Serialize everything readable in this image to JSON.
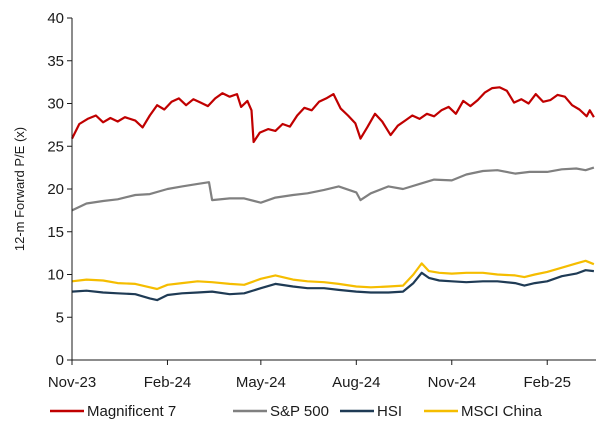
{
  "chart_data": {
    "type": "line",
    "title": "",
    "xlabel": "",
    "ylabel": "12-m Forward P/E (x)",
    "ylim": [
      0,
      40
    ],
    "yticks": [
      0,
      5,
      10,
      15,
      20,
      25,
      30,
      35,
      40
    ],
    "xlim": [
      "2023-11-01",
      "2025-03-20"
    ],
    "xticks": [
      {
        "date": "2023-11-01",
        "label": "Nov-23"
      },
      {
        "date": "2024-02-01",
        "label": "Feb-24"
      },
      {
        "date": "2024-05-01",
        "label": "May-24"
      },
      {
        "date": "2024-08-01",
        "label": "Aug-24"
      },
      {
        "date": "2024-11-01",
        "label": "Nov-24"
      },
      {
        "date": "2025-02-01",
        "label": "Feb-25"
      }
    ],
    "grid": false,
    "legend_position": "bottom",
    "series": [
      {
        "name": "Magnificent 7",
        "color": "#c00000",
        "points": [
          [
            "2023-11-01",
            25.9
          ],
          [
            "2023-11-08",
            27.6
          ],
          [
            "2023-11-16",
            28.2
          ],
          [
            "2023-11-24",
            28.6
          ],
          [
            "2023-12-01",
            27.8
          ],
          [
            "2023-12-08",
            28.3
          ],
          [
            "2023-12-15",
            27.9
          ],
          [
            "2023-12-22",
            28.4
          ],
          [
            "2024-01-01",
            28.0
          ],
          [
            "2024-01-08",
            27.2
          ],
          [
            "2024-01-15",
            28.6
          ],
          [
            "2024-01-22",
            29.8
          ],
          [
            "2024-01-29",
            29.3
          ],
          [
            "2024-02-05",
            30.2
          ],
          [
            "2024-02-12",
            30.6
          ],
          [
            "2024-02-19",
            29.8
          ],
          [
            "2024-02-26",
            30.5
          ],
          [
            "2024-03-04",
            30.1
          ],
          [
            "2024-03-11",
            29.7
          ],
          [
            "2024-03-18",
            30.6
          ],
          [
            "2024-03-25",
            31.2
          ],
          [
            "2024-04-01",
            30.8
          ],
          [
            "2024-04-08",
            31.1
          ],
          [
            "2024-04-12",
            29.6
          ],
          [
            "2024-04-18",
            30.3
          ],
          [
            "2024-04-22",
            29.2
          ],
          [
            "2024-04-24",
            25.5
          ],
          [
            "2024-04-30",
            26.6
          ],
          [
            "2024-05-08",
            27.0
          ],
          [
            "2024-05-15",
            26.8
          ],
          [
            "2024-05-22",
            27.6
          ],
          [
            "2024-05-29",
            27.3
          ],
          [
            "2024-06-05",
            28.6
          ],
          [
            "2024-06-12",
            29.5
          ],
          [
            "2024-06-19",
            29.2
          ],
          [
            "2024-06-26",
            30.2
          ],
          [
            "2024-07-03",
            30.6
          ],
          [
            "2024-07-10",
            31.1
          ],
          [
            "2024-07-17",
            29.4
          ],
          [
            "2024-07-24",
            28.6
          ],
          [
            "2024-07-31",
            27.7
          ],
          [
            "2024-08-05",
            25.9
          ],
          [
            "2024-08-12",
            27.3
          ],
          [
            "2024-08-19",
            28.8
          ],
          [
            "2024-08-26",
            27.9
          ],
          [
            "2024-09-03",
            26.3
          ],
          [
            "2024-09-10",
            27.4
          ],
          [
            "2024-09-17",
            28.0
          ],
          [
            "2024-09-24",
            28.6
          ],
          [
            "2024-10-01",
            28.2
          ],
          [
            "2024-10-08",
            28.8
          ],
          [
            "2024-10-15",
            28.5
          ],
          [
            "2024-10-22",
            29.2
          ],
          [
            "2024-10-29",
            29.6
          ],
          [
            "2024-11-05",
            28.8
          ],
          [
            "2024-11-12",
            30.3
          ],
          [
            "2024-11-19",
            29.7
          ],
          [
            "2024-11-26",
            30.4
          ],
          [
            "2024-12-03",
            31.3
          ],
          [
            "2024-12-10",
            31.8
          ],
          [
            "2024-12-17",
            31.9
          ],
          [
            "2024-12-24",
            31.5
          ],
          [
            "2024-12-31",
            30.1
          ],
          [
            "2025-01-07",
            30.5
          ],
          [
            "2025-01-14",
            30.0
          ],
          [
            "2025-01-21",
            31.1
          ],
          [
            "2025-01-28",
            30.2
          ],
          [
            "2025-02-04",
            30.4
          ],
          [
            "2025-02-11",
            31.0
          ],
          [
            "2025-02-18",
            30.8
          ],
          [
            "2025-02-25",
            29.8
          ],
          [
            "2025-03-04",
            29.3
          ],
          [
            "2025-03-11",
            28.5
          ],
          [
            "2025-03-14",
            29.2
          ],
          [
            "2025-03-18",
            28.4
          ]
        ]
      },
      {
        "name": "S&P 500",
        "color": "#808080",
        "points": [
          [
            "2023-11-01",
            17.5
          ],
          [
            "2023-11-15",
            18.3
          ],
          [
            "2023-12-01",
            18.6
          ],
          [
            "2023-12-15",
            18.8
          ],
          [
            "2024-01-01",
            19.3
          ],
          [
            "2024-01-15",
            19.4
          ],
          [
            "2024-02-01",
            20.0
          ],
          [
            "2024-02-15",
            20.3
          ],
          [
            "2024-03-01",
            20.6
          ],
          [
            "2024-03-12",
            20.8
          ],
          [
            "2024-03-15",
            18.7
          ],
          [
            "2024-04-01",
            18.9
          ],
          [
            "2024-04-15",
            18.9
          ],
          [
            "2024-05-01",
            18.4
          ],
          [
            "2024-05-15",
            19.0
          ],
          [
            "2024-06-01",
            19.3
          ],
          [
            "2024-06-15",
            19.5
          ],
          [
            "2024-07-01",
            19.9
          ],
          [
            "2024-07-15",
            20.3
          ],
          [
            "2024-08-01",
            19.6
          ],
          [
            "2024-08-05",
            18.7
          ],
          [
            "2024-08-15",
            19.5
          ],
          [
            "2024-09-01",
            20.3
          ],
          [
            "2024-09-15",
            20.0
          ],
          [
            "2024-10-01",
            20.6
          ],
          [
            "2024-10-15",
            21.1
          ],
          [
            "2024-11-01",
            21.0
          ],
          [
            "2024-11-15",
            21.7
          ],
          [
            "2024-12-01",
            22.1
          ],
          [
            "2024-12-15",
            22.2
          ],
          [
            "2025-01-01",
            21.8
          ],
          [
            "2025-01-15",
            22.0
          ],
          [
            "2025-02-01",
            22.0
          ],
          [
            "2025-02-15",
            22.3
          ],
          [
            "2025-03-01",
            22.4
          ],
          [
            "2025-03-10",
            22.2
          ],
          [
            "2025-03-18",
            22.5
          ]
        ]
      },
      {
        "name": "HSI",
        "color": "#1f3b55",
        "points": [
          [
            "2023-11-01",
            8.0
          ],
          [
            "2023-11-15",
            8.1
          ],
          [
            "2023-12-01",
            7.9
          ],
          [
            "2023-12-15",
            7.8
          ],
          [
            "2024-01-01",
            7.7
          ],
          [
            "2024-01-15",
            7.2
          ],
          [
            "2024-01-22",
            7.0
          ],
          [
            "2024-02-01",
            7.6
          ],
          [
            "2024-02-15",
            7.8
          ],
          [
            "2024-03-01",
            7.9
          ],
          [
            "2024-03-15",
            8.0
          ],
          [
            "2024-04-01",
            7.7
          ],
          [
            "2024-04-15",
            7.8
          ],
          [
            "2024-05-01",
            8.4
          ],
          [
            "2024-05-15",
            8.9
          ],
          [
            "2024-06-01",
            8.6
          ],
          [
            "2024-06-15",
            8.4
          ],
          [
            "2024-07-01",
            8.4
          ],
          [
            "2024-07-15",
            8.2
          ],
          [
            "2024-08-01",
            8.0
          ],
          [
            "2024-08-15",
            7.9
          ],
          [
            "2024-09-01",
            7.9
          ],
          [
            "2024-09-15",
            8.0
          ],
          [
            "2024-09-25",
            9.0
          ],
          [
            "2024-10-03",
            10.2
          ],
          [
            "2024-10-10",
            9.6
          ],
          [
            "2024-10-20",
            9.3
          ],
          [
            "2024-11-01",
            9.2
          ],
          [
            "2024-11-15",
            9.1
          ],
          [
            "2024-12-01",
            9.2
          ],
          [
            "2024-12-15",
            9.2
          ],
          [
            "2025-01-01",
            9.0
          ],
          [
            "2025-01-10",
            8.7
          ],
          [
            "2025-01-20",
            9.0
          ],
          [
            "2025-02-01",
            9.2
          ],
          [
            "2025-02-15",
            9.8
          ],
          [
            "2025-03-01",
            10.1
          ],
          [
            "2025-03-10",
            10.5
          ],
          [
            "2025-03-18",
            10.4
          ]
        ]
      },
      {
        "name": "MSCI China",
        "color": "#f5bd00",
        "points": [
          [
            "2023-11-01",
            9.2
          ],
          [
            "2023-11-15",
            9.4
          ],
          [
            "2023-12-01",
            9.3
          ],
          [
            "2023-12-15",
            9.0
          ],
          [
            "2024-01-01",
            8.9
          ],
          [
            "2024-01-15",
            8.5
          ],
          [
            "2024-01-22",
            8.3
          ],
          [
            "2024-02-01",
            8.8
          ],
          [
            "2024-02-15",
            9.0
          ],
          [
            "2024-03-01",
            9.2
          ],
          [
            "2024-03-15",
            9.1
          ],
          [
            "2024-04-01",
            8.9
          ],
          [
            "2024-04-15",
            8.8
          ],
          [
            "2024-05-01",
            9.5
          ],
          [
            "2024-05-15",
            9.9
          ],
          [
            "2024-06-01",
            9.4
          ],
          [
            "2024-06-15",
            9.2
          ],
          [
            "2024-07-01",
            9.1
          ],
          [
            "2024-07-15",
            8.9
          ],
          [
            "2024-08-01",
            8.6
          ],
          [
            "2024-08-15",
            8.5
          ],
          [
            "2024-09-01",
            8.6
          ],
          [
            "2024-09-15",
            8.7
          ],
          [
            "2024-09-25",
            10.0
          ],
          [
            "2024-10-03",
            11.3
          ],
          [
            "2024-10-10",
            10.4
          ],
          [
            "2024-10-20",
            10.2
          ],
          [
            "2024-11-01",
            10.1
          ],
          [
            "2024-11-15",
            10.2
          ],
          [
            "2024-12-01",
            10.2
          ],
          [
            "2024-12-15",
            10.0
          ],
          [
            "2025-01-01",
            9.9
          ],
          [
            "2025-01-10",
            9.7
          ],
          [
            "2025-01-20",
            10.0
          ],
          [
            "2025-02-01",
            10.3
          ],
          [
            "2025-02-15",
            10.8
          ],
          [
            "2025-03-01",
            11.3
          ],
          [
            "2025-03-10",
            11.6
          ],
          [
            "2025-03-18",
            11.2
          ]
        ]
      }
    ]
  }
}
